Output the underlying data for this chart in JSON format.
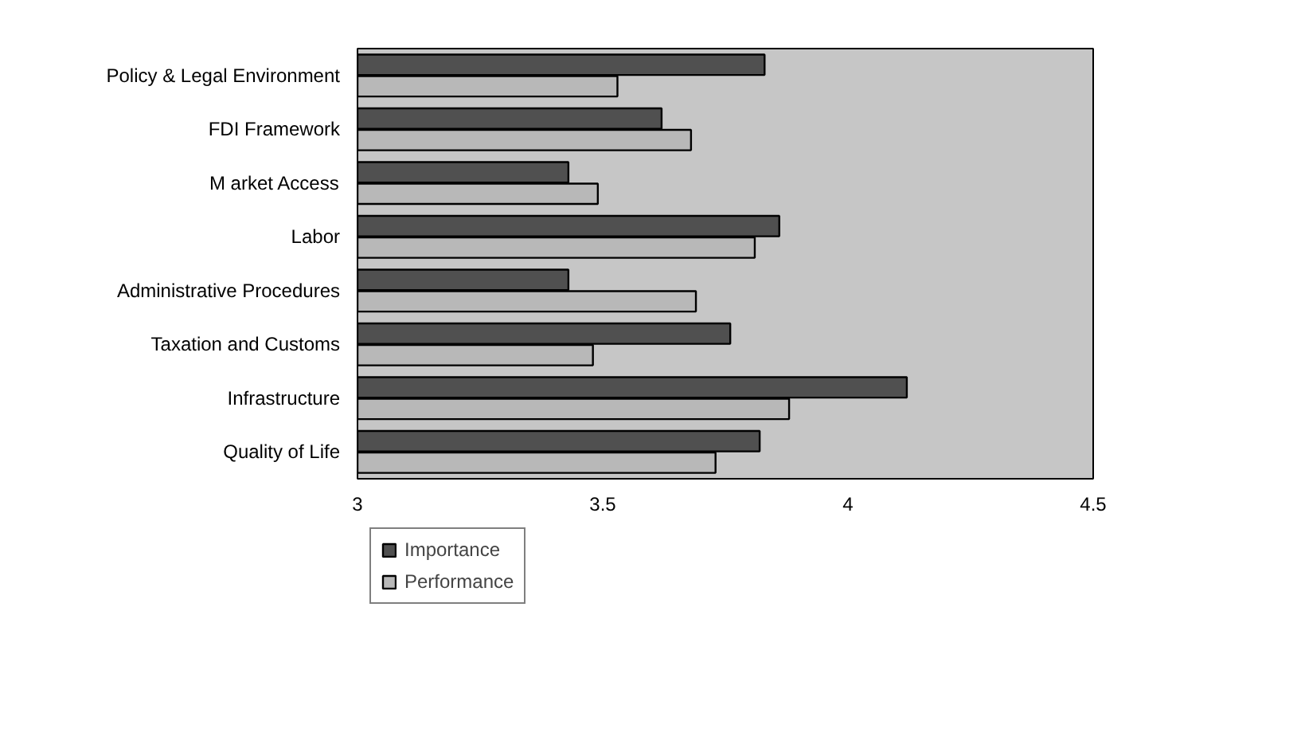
{
  "chart_data": {
    "type": "bar",
    "orientation": "horizontal",
    "categories": [
      "Policy & Legal Environment",
      "FDI Framework",
      "M arket Access",
      "Labor",
      "Administrative Procedures",
      "Taxation and Customs",
      "Infrastructure",
      "Quality of Life"
    ],
    "series": [
      {
        "name": "Importance",
        "color": "#505050",
        "values": [
          3.83,
          3.62,
          3.43,
          3.86,
          3.43,
          3.76,
          4.12,
          3.82
        ]
      },
      {
        "name": "Performance",
        "color": "#b8b8b8",
        "values": [
          3.53,
          3.68,
          3.49,
          3.81,
          3.69,
          3.48,
          3.88,
          3.73
        ]
      }
    ],
    "xlim": [
      3,
      4.5
    ],
    "xticks": [
      3,
      3.5,
      4,
      4.5
    ],
    "grid": false,
    "legend": "bottom"
  }
}
